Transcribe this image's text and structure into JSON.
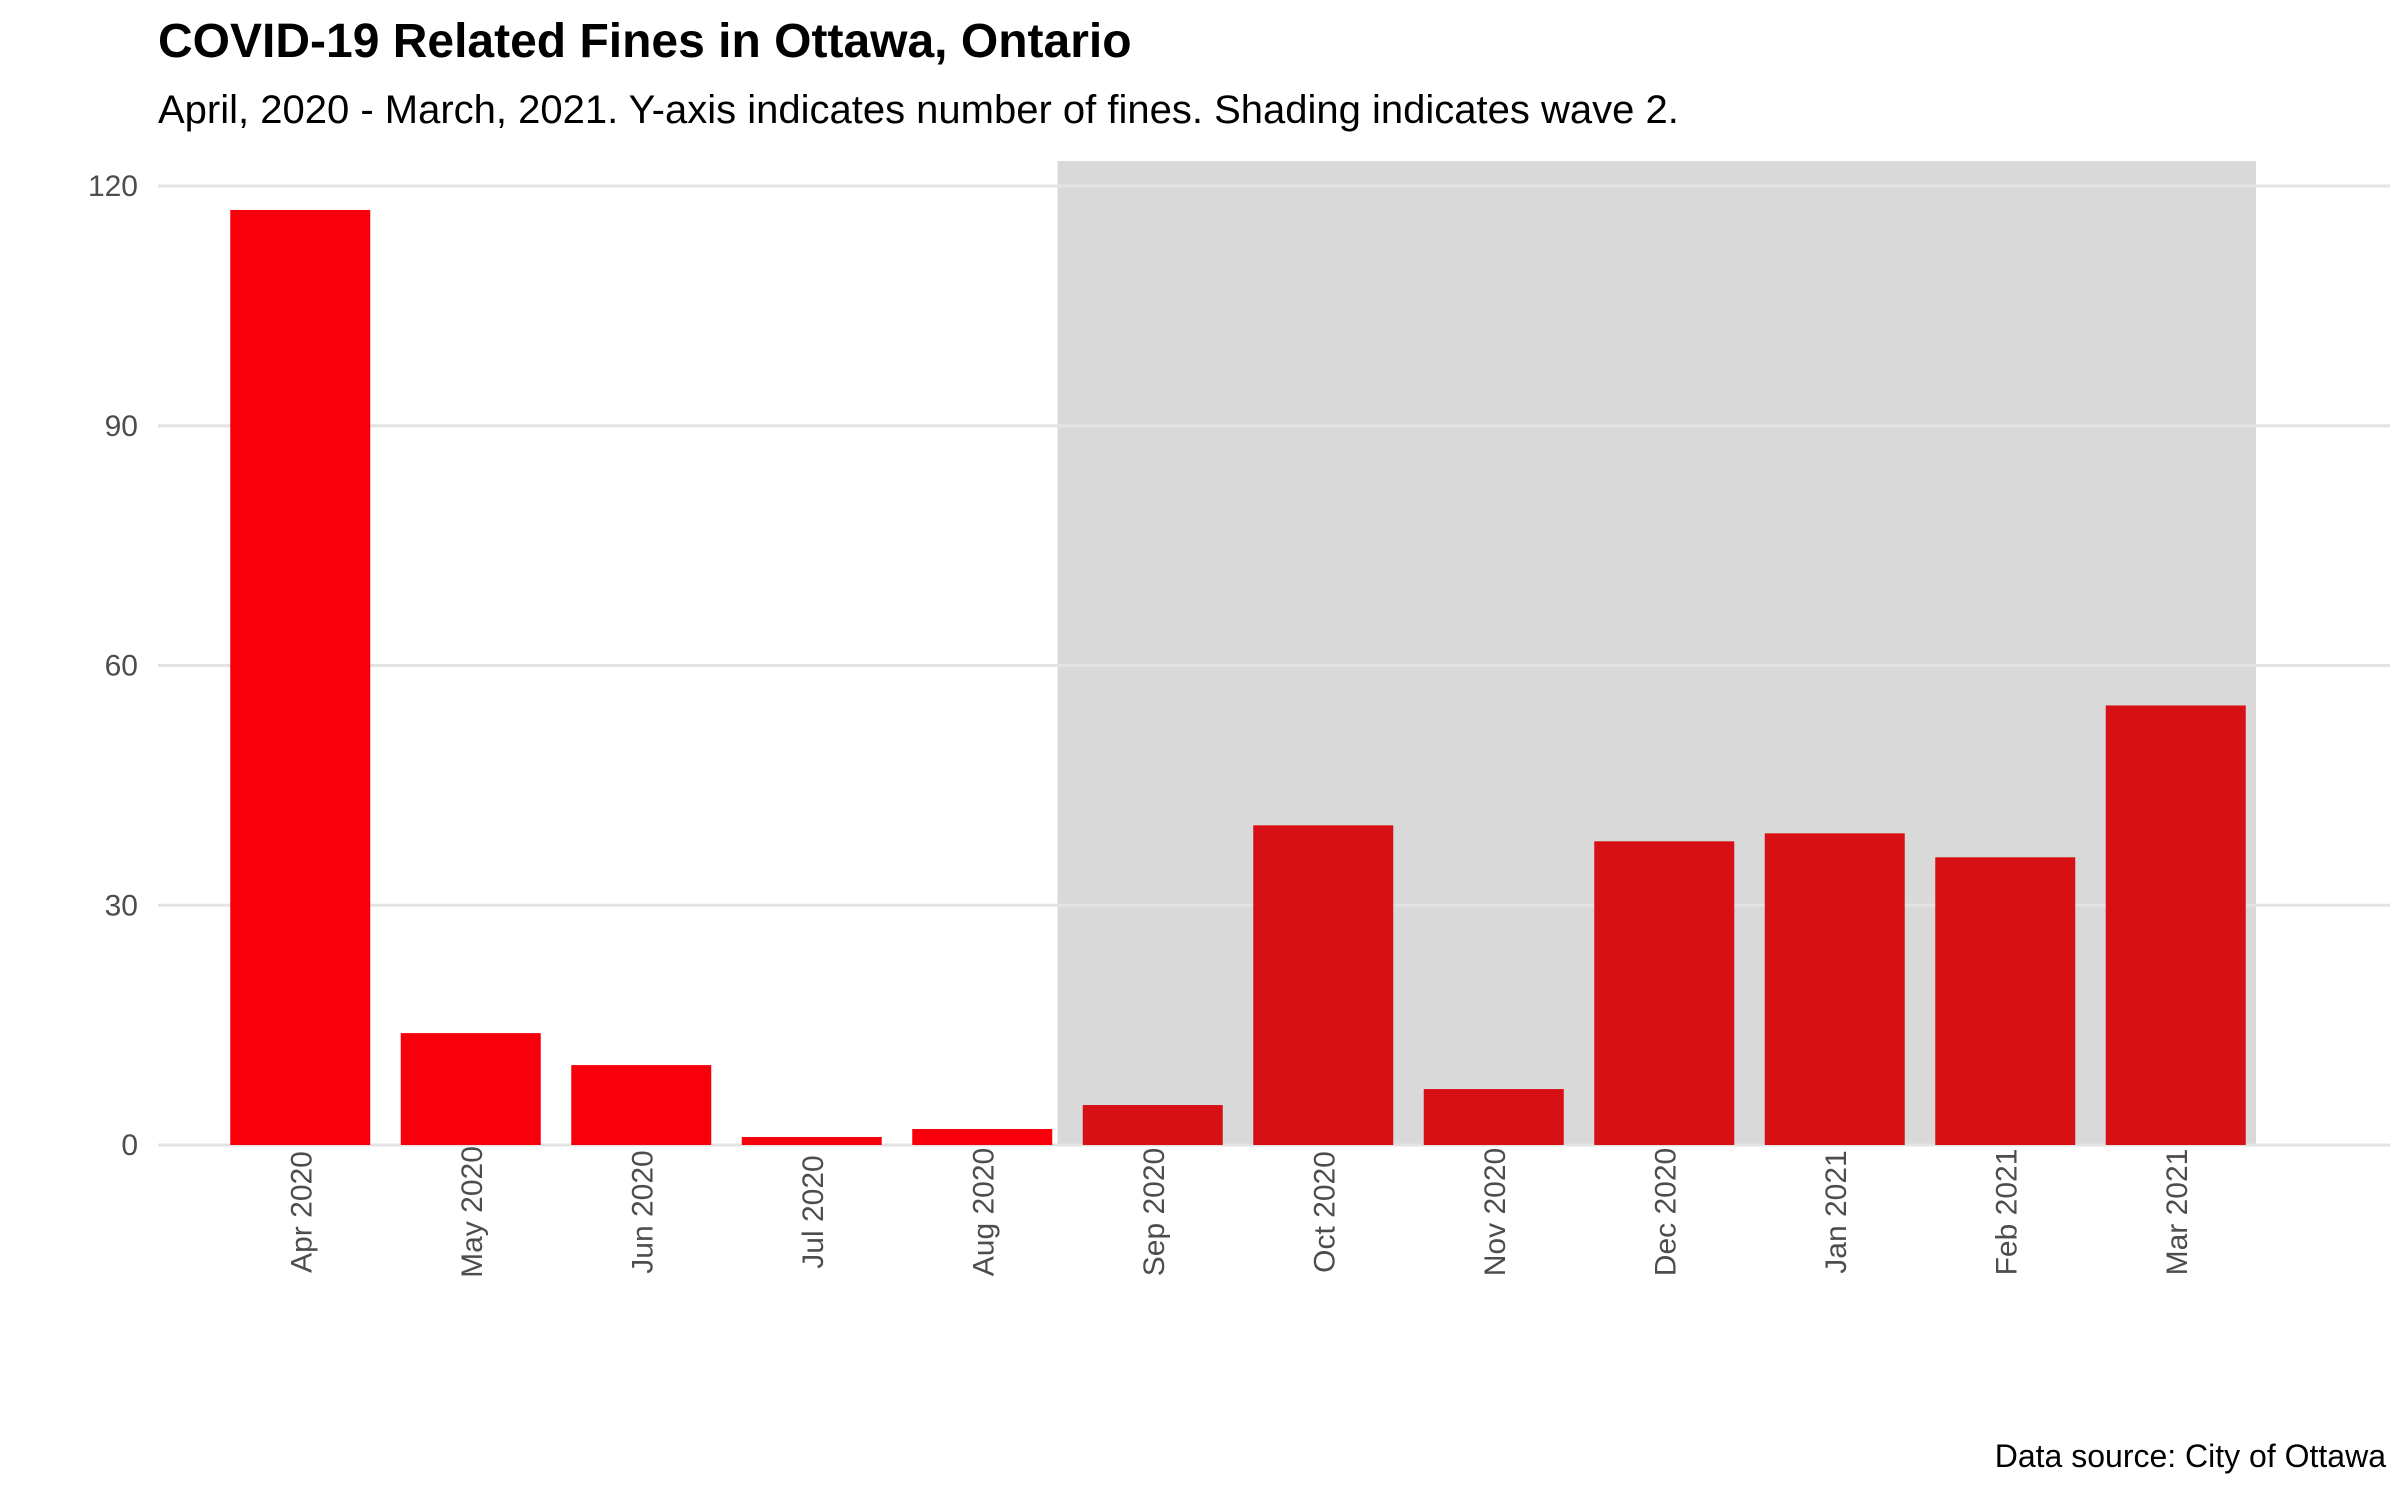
{
  "title": "COVID-19 Related Fines in Ottawa, Ontario",
  "subtitle": "April, 2020 - March, 2021. Y-axis indicates number of fines. Shading indicates wave 2.",
  "caption": "Data source: City of Ottawa",
  "colors": {
    "bar_pre_wave": "#f7000c",
    "bar_wave2": "#d71015",
    "shading": "#d9d9d9",
    "gridline": "#e3e3e3",
    "tick_text": "#4d4d4d"
  },
  "chart_data": {
    "type": "bar",
    "title": "COVID-19 Related Fines in Ottawa, Ontario",
    "subtitle": "April, 2020 - March, 2021. Y-axis indicates number of fines. Shading indicates wave 2.",
    "xlabel": "",
    "ylabel": "",
    "categories": [
      "Apr 2020",
      "May 2020",
      "Jun 2020",
      "Jul 2020",
      "Aug 2020",
      "Sep 2020",
      "Oct 2020",
      "Nov 2020",
      "Dec 2020",
      "Jan 2021",
      "Feb 2021",
      "Mar 2021"
    ],
    "values": [
      117,
      14,
      10,
      1,
      2,
      5,
      40,
      7,
      38,
      39,
      36,
      55
    ],
    "wave2": [
      false,
      false,
      false,
      false,
      false,
      true,
      true,
      true,
      true,
      true,
      true,
      true
    ],
    "shaded_region": {
      "from": "Sep 2020",
      "to": "Mar 2021",
      "label": "wave 2"
    },
    "yticks": [
      0,
      30,
      60,
      90,
      120
    ],
    "ylim": [
      0,
      120
    ],
    "grid": true,
    "legend": "none",
    "xtick_rotation": "vertical"
  }
}
